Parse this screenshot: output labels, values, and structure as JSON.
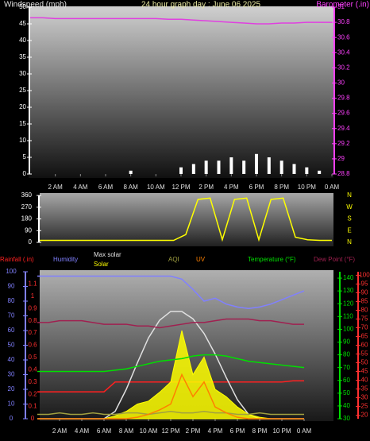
{
  "chart_data": [
    {
      "type": "line",
      "title": "24 hour graph day : June 06 2025",
      "y_label": "Windspeed (mph)",
      "y2_label": "Barometer (.in)",
      "x": [
        0,
        1,
        2,
        3,
        4,
        5,
        6,
        7,
        8,
        9,
        10,
        11,
        12,
        13,
        14,
        15,
        16,
        17,
        18,
        19,
        20,
        21,
        22,
        23,
        24
      ],
      "xlim": [
        0,
        24
      ],
      "xticks": [
        {
          "value": 2,
          "label": "2 AM"
        },
        {
          "value": 4,
          "label": "4 AM"
        },
        {
          "value": 6,
          "label": "6 AM"
        },
        {
          "value": 8,
          "label": "8 AM"
        },
        {
          "value": 10,
          "label": "10 AM"
        },
        {
          "value": 12,
          "label": "12 PM"
        },
        {
          "value": 14,
          "label": "2 PM"
        },
        {
          "value": 16,
          "label": "4 PM"
        },
        {
          "value": 18,
          "label": "6 PM"
        },
        {
          "value": 20,
          "label": "8 PM"
        },
        {
          "value": 22,
          "label": "10 PM"
        },
        {
          "value": 24,
          "label": "0 AM"
        }
      ],
      "ylim": [
        0,
        50
      ],
      "yticks": [
        0,
        5,
        10,
        15,
        20,
        25,
        30,
        35,
        40,
        45,
        50
      ],
      "ycolor": "#ffffff",
      "y2lim": [
        28.8,
        31
      ],
      "y2ticks": [
        28.8,
        29,
        29.2,
        29.4,
        29.6,
        29.8,
        30,
        30.2,
        30.4,
        30.6,
        30.8,
        31
      ],
      "y2color": "#ff40ff",
      "series": [
        {
          "name": "Windspeed (mph)",
          "type": "bar",
          "color": "#ffffff",
          "axis": "y",
          "values": [
            0,
            0,
            0,
            0,
            0,
            0,
            0,
            0,
            1,
            0,
            0,
            0,
            2,
            3,
            4,
            4,
            5,
            4,
            6,
            5,
            4,
            3,
            2,
            1,
            0
          ]
        },
        {
          "name": "Barometer (.in)",
          "type": "line",
          "color": "#e040e0",
          "axis": "y2",
          "values": [
            30.86,
            30.86,
            30.85,
            30.85,
            30.85,
            30.85,
            30.85,
            30.85,
            30.85,
            30.85,
            30.85,
            30.84,
            30.84,
            30.83,
            30.82,
            30.81,
            30.8,
            30.79,
            30.78,
            30.78,
            30.79,
            30.79,
            30.8,
            30.8,
            30.8
          ]
        }
      ]
    },
    {
      "type": "line",
      "x": [
        0,
        1,
        2,
        3,
        4,
        5,
        6,
        7,
        8,
        9,
        10,
        11,
        12,
        13,
        14,
        15,
        16,
        17,
        18,
        19,
        20,
        21,
        22,
        23,
        24
      ],
      "xlim": [
        0,
        24
      ],
      "ylim": [
        0,
        360
      ],
      "yticks": [
        0,
        90,
        180,
        270,
        360
      ],
      "ycolor": "#ffffff",
      "y2lim": [
        0,
        360
      ],
      "y2ticks": [
        {
          "value": 0,
          "label": "N"
        },
        {
          "value": 90,
          "label": "E"
        },
        {
          "value": 180,
          "label": "S"
        },
        {
          "value": 270,
          "label": "W"
        },
        {
          "value": 360,
          "label": "N"
        }
      ],
      "y2color": "#ffff00",
      "series": [
        {
          "name": "Wind direction",
          "type": "line",
          "color": "#ffff00",
          "axis": "y",
          "values": [
            15,
            15,
            15,
            15,
            15,
            15,
            15,
            15,
            15,
            15,
            15,
            15,
            60,
            330,
            340,
            20,
            330,
            340,
            20,
            330,
            340,
            40,
            20,
            15,
            15
          ]
        }
      ]
    },
    {
      "type": "line",
      "x": [
        0,
        1,
        2,
        3,
        4,
        5,
        6,
        7,
        8,
        9,
        10,
        11,
        12,
        13,
        14,
        15,
        16,
        17,
        18,
        19,
        20,
        21,
        22,
        23,
        24
      ],
      "xlim": [
        0,
        24
      ],
      "xticks": [
        {
          "value": 2,
          "label": "2 AM"
        },
        {
          "value": 4,
          "label": "4 AM"
        },
        {
          "value": 6,
          "label": "6 AM"
        },
        {
          "value": 8,
          "label": "8 AM"
        },
        {
          "value": 10,
          "label": "10 AM"
        },
        {
          "value": 12,
          "label": "12 PM"
        },
        {
          "value": 14,
          "label": "2 PM"
        },
        {
          "value": 16,
          "label": "4 PM"
        },
        {
          "value": 18,
          "label": "6 PM"
        },
        {
          "value": 20,
          "label": "8 PM"
        },
        {
          "value": 22,
          "label": "10 PM"
        },
        {
          "value": 24,
          "label": "0 AM"
        }
      ],
      "ylim": [
        0,
        100
      ],
      "yticks": [
        0,
        10,
        20,
        30,
        40,
        50,
        60,
        70,
        80,
        90,
        100
      ],
      "ycolor": "#8080ff",
      "y2lim": [
        0,
        1.2
      ],
      "y2ticks": [
        0,
        0.1,
        0.2,
        0.3,
        0.4,
        0.5,
        0.6,
        0.7,
        0.8,
        0.9,
        1,
        1.1
      ],
      "y2color": "#ff3030",
      "y3lim": [
        30,
        145
      ],
      "y3ticks": [
        30,
        40,
        50,
        60,
        70,
        80,
        90,
        100,
        110,
        120,
        130,
        140
      ],
      "y3color": "#00e000",
      "y4lim": [
        18,
        102
      ],
      "y4ticks": [
        20,
        25,
        30,
        35,
        40,
        45,
        50,
        55,
        60,
        65,
        70,
        75,
        80,
        85,
        90,
        95,
        100
      ],
      "y4color": "#ff3030",
      "series": [
        {
          "name": "Rainfall (.in)",
          "type": "line",
          "color": "#ff2020",
          "axis": "y2",
          "values": [
            0.22,
            0.22,
            0.22,
            0.22,
            0.22,
            0.22,
            0.22,
            0.3,
            0.3,
            0.3,
            0.3,
            0.3,
            0.3,
            0.3,
            0.3,
            0.3,
            0.3,
            0.3,
            0.3,
            0.3,
            0.3,
            0.3,
            0.3,
            0.31,
            0.31
          ]
        },
        {
          "name": "Humidity",
          "type": "line",
          "color": "#8080ff",
          "axis": "y",
          "values": [
            97,
            97,
            97,
            97,
            97,
            97,
            97,
            97,
            97,
            97,
            97,
            97,
            97,
            95,
            88,
            80,
            82,
            78,
            76,
            75,
            76,
            78,
            81,
            84,
            87
          ]
        },
        {
          "name": "Max solar",
          "type": "line",
          "color": "#e0e0e0",
          "axis": "y",
          "values": [
            0,
            0,
            0,
            0,
            0,
            0,
            0,
            5,
            20,
            38,
            55,
            67,
            73,
            73,
            68,
            58,
            44,
            28,
            13,
            3,
            0,
            0,
            0,
            0,
            0
          ]
        },
        {
          "name": "Solar",
          "type": "area",
          "color": "#ffff00",
          "axis": "y",
          "values": [
            0,
            0,
            0,
            0,
            0,
            0,
            0,
            2,
            5,
            10,
            12,
            18,
            25,
            60,
            30,
            42,
            20,
            15,
            8,
            3,
            1,
            0,
            0,
            0,
            0
          ]
        },
        {
          "name": "AQI",
          "type": "line",
          "color": "#a0a040",
          "axis": "y",
          "values": [
            3,
            3,
            4,
            3,
            3,
            4,
            3,
            3,
            4,
            4,
            3,
            4,
            5,
            4,
            4,
            5,
            4,
            4,
            3,
            3,
            4,
            3,
            3,
            3,
            3
          ]
        },
        {
          "name": "UV",
          "type": "line",
          "color": "#ff8000",
          "axis": "y",
          "values": [
            0,
            0,
            0,
            0,
            0,
            0,
            0,
            0,
            0,
            1,
            3,
            6,
            10,
            30,
            15,
            25,
            8,
            4,
            1,
            0,
            0,
            0,
            0,
            0,
            0
          ]
        },
        {
          "name": "Temperature (°F)",
          "type": "line",
          "color": "#00e000",
          "axis": "y3",
          "values": [
            67,
            67,
            67,
            67,
            67,
            67,
            67,
            68,
            69,
            71,
            73,
            75,
            76,
            77,
            79,
            80,
            80,
            79,
            77,
            75,
            74,
            73,
            72,
            71,
            70
          ]
        },
        {
          "name": "Dew Point (°F)",
          "type": "line",
          "color": "#a02050",
          "axis": "y4",
          "values": [
            73,
            73,
            74,
            74,
            74,
            73,
            72,
            72,
            72,
            71,
            71,
            70,
            71,
            72,
            73,
            73,
            74,
            75,
            75,
            75,
            74,
            74,
            73,
            72,
            72
          ]
        }
      ]
    }
  ]
}
